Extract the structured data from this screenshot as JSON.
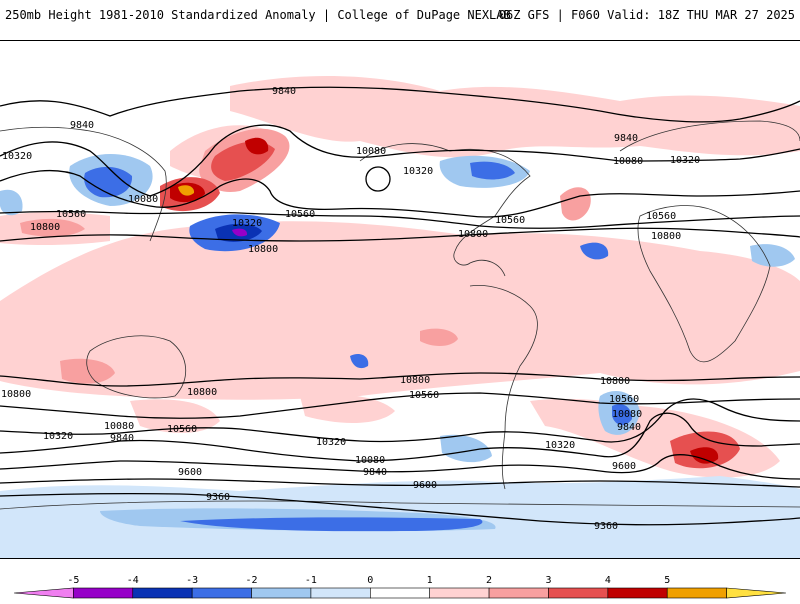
{
  "header": {
    "title": "250mb Height 1981-2010 Standardized Anomaly | College of DuPage NEXLAB",
    "run": "06Z GFS | F060 Valid: 18Z THU MAR 27 2025"
  },
  "colorbar": {
    "ticks": [
      "-5",
      "-4",
      "-3",
      "-2",
      "-1",
      "0",
      "1",
      "2",
      "3",
      "4",
      "5"
    ],
    "colors": [
      "#f07ef0",
      "#9600c8",
      "#0a32b4",
      "#3c6ee6",
      "#a0c8f0",
      "#d2e6fa",
      "#ffffff",
      "#ffd2d2",
      "#f8a0a0",
      "#e65050",
      "#c00000",
      "#f0a000",
      "#ffe040"
    ]
  },
  "contour_labels": [
    {
      "id": "l01",
      "text": "9840"
    },
    {
      "id": "l02",
      "text": "9840"
    },
    {
      "id": "l03",
      "text": "10320"
    },
    {
      "id": "l04",
      "text": "10080"
    },
    {
      "id": "l05",
      "text": "10560"
    },
    {
      "id": "l06",
      "text": "10800"
    },
    {
      "id": "l07",
      "text": "10320"
    },
    {
      "id": "l08",
      "text": "10800"
    },
    {
      "id": "l09",
      "text": "10560"
    },
    {
      "id": "l10",
      "text": "10080"
    },
    {
      "id": "l11",
      "text": "10320"
    },
    {
      "id": "l12",
      "text": "10800"
    },
    {
      "id": "l13",
      "text": "10560"
    },
    {
      "id": "l14",
      "text": "9840"
    },
    {
      "id": "l15",
      "text": "10080"
    },
    {
      "id": "l16",
      "text": "10320"
    },
    {
      "id": "l17",
      "text": "10560"
    },
    {
      "id": "l18",
      "text": "10800"
    },
    {
      "id": "l19",
      "text": "10800"
    },
    {
      "id": "l20",
      "text": "10800"
    },
    {
      "id": "l21",
      "text": "10800"
    },
    {
      "id": "l22",
      "text": "10560"
    },
    {
      "id": "l23",
      "text": "10560"
    },
    {
      "id": "l24",
      "text": "10800"
    },
    {
      "id": "l25",
      "text": "10560"
    },
    {
      "id": "l26",
      "text": "10320"
    },
    {
      "id": "l27",
      "text": "10080"
    },
    {
      "id": "l28",
      "text": "9840"
    },
    {
      "id": "l29",
      "text": "10320"
    },
    {
      "id": "l30",
      "text": "10080"
    },
    {
      "id": "l31",
      "text": "9840"
    },
    {
      "id": "l32",
      "text": "9600"
    },
    {
      "id": "l33",
      "text": "9360"
    },
    {
      "id": "l34",
      "text": "9600"
    },
    {
      "id": "l35",
      "text": "10320"
    },
    {
      "id": "l36",
      "text": "10080"
    },
    {
      "id": "l37",
      "text": "9840"
    },
    {
      "id": "l38",
      "text": "9600"
    },
    {
      "id": "l39",
      "text": "9360"
    }
  ]
}
